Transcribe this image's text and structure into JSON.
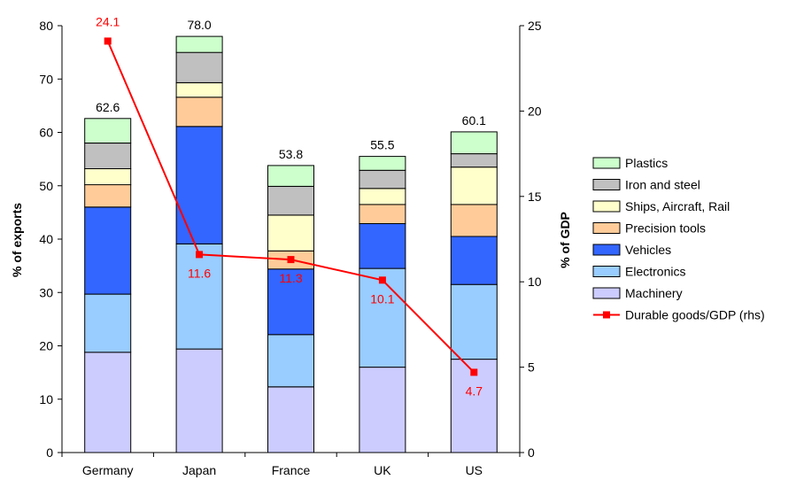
{
  "chart_data": {
    "type": "bar",
    "stacked": true,
    "categories": [
      "Germany",
      "Japan",
      "France",
      "UK",
      "US"
    ],
    "ylabel": "% of exports",
    "ylabel_right": "% of GDP",
    "ylim": [
      0,
      80
    ],
    "ylim_right": [
      0,
      25
    ],
    "yticks": [
      0,
      10,
      20,
      30,
      40,
      50,
      60,
      70,
      80
    ],
    "yticks_right": [
      0,
      5,
      10,
      15,
      20,
      25
    ],
    "grid": false,
    "legend_position": "right",
    "series": [
      {
        "name": "Machinery",
        "color": "#ccccff",
        "values": [
          18.8,
          19.4,
          12.3,
          16.0,
          17.5
        ]
      },
      {
        "name": "Electronics",
        "color": "#99ccff",
        "values": [
          10.9,
          19.7,
          9.8,
          18.5,
          14.0
        ]
      },
      {
        "name": "Vehicles",
        "color": "#3366ff",
        "values": [
          16.3,
          22.0,
          12.3,
          8.4,
          9.0
        ]
      },
      {
        "name": "Precision tools",
        "color": "#ffcc99",
        "values": [
          4.2,
          5.5,
          3.4,
          3.6,
          6.0
        ]
      },
      {
        "name": "Ships, Aircraft, Rail",
        "color": "#ffffcc",
        "values": [
          3.0,
          2.7,
          6.7,
          3.0,
          7.0
        ]
      },
      {
        "name": "Iron and steel",
        "color": "#c0c0c0",
        "values": [
          4.8,
          5.7,
          5.4,
          3.4,
          2.5
        ]
      },
      {
        "name": "Plastics",
        "color": "#ccffcc",
        "values": [
          4.6,
          3.0,
          3.9,
          2.6,
          4.1
        ]
      }
    ],
    "totals": [
      "62.6",
      "78.0",
      "53.8",
      "55.5",
      "60.1"
    ],
    "line_series": {
      "name": "Durable goods/GDP (rhs)",
      "color": "#ff0000",
      "values": [
        24.1,
        11.6,
        11.3,
        10.1,
        4.7
      ],
      "labels": [
        "24.1",
        "11.6",
        "11.3",
        "10.1",
        "4.7"
      ]
    },
    "legend_order": [
      "Plastics",
      "Iron and steel",
      "Ships, Aircraft, Rail",
      "Precision tools",
      "Vehicles",
      "Electronics",
      "Machinery",
      "Durable goods/GDP (rhs)"
    ]
  }
}
